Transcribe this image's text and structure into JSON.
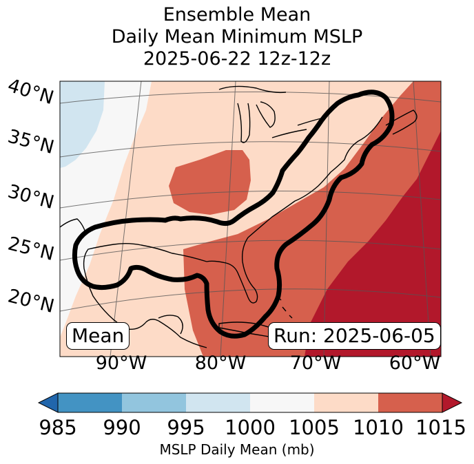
{
  "title": {
    "line1": "Ensemble Mean",
    "line2": "Daily Mean Minimum MSLP",
    "line3": "2025-06-22 12z-12z"
  },
  "map": {
    "lat_labels": [
      "40°N",
      "35°N",
      "30°N",
      "25°N",
      "20°N"
    ],
    "lon_labels": [
      "90°W",
      "80°W",
      "70°W",
      "60°W"
    ],
    "mean_box": "Mean",
    "run_box": "Run: 2025-06-05",
    "fill_levels": {
      "995-1000": "#d1e5f0",
      "1000-1005": "#f7f7f7",
      "1005-1010": "#fddbc7",
      "1010-1015": "#d6604d",
      "above-1015": "#b2182b"
    },
    "outline_color": "#000000"
  },
  "colorbar": {
    "label": "MSLP Daily Mean (mb)",
    "ticks": [
      "985",
      "990",
      "995",
      "1000",
      "1005",
      "1010",
      "1015"
    ],
    "colors": [
      "#4393c3",
      "#92c5de",
      "#d1e5f0",
      "#f7f7f7",
      "#fddbc7",
      "#d6604d"
    ],
    "under_color": "#2166ac",
    "over_color": "#b2182b"
  }
}
